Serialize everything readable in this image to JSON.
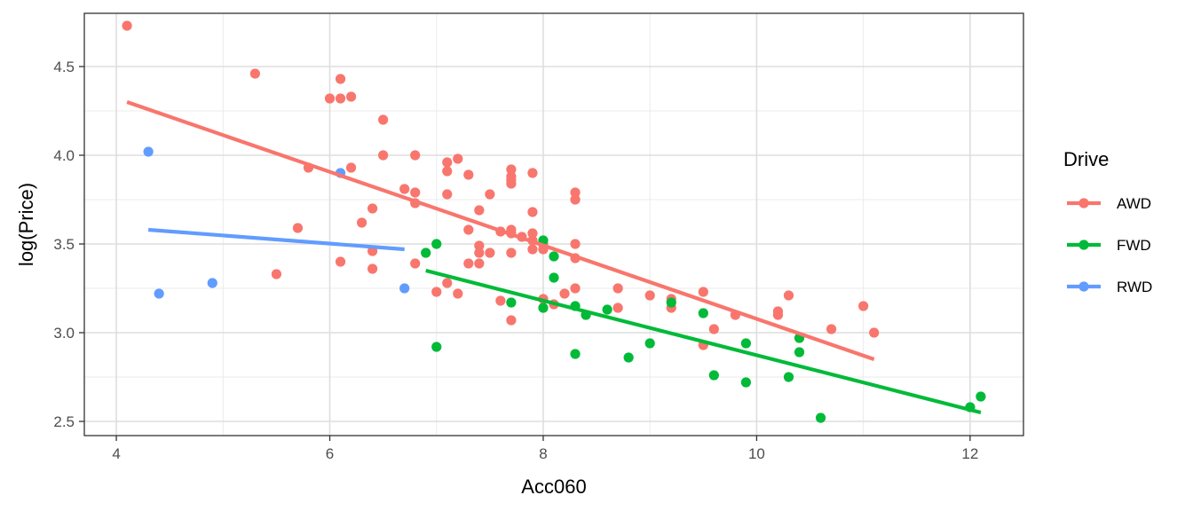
{
  "chart_data": {
    "type": "scatter",
    "xlabel": "Acc060",
    "ylabel": "log(Price)",
    "xlim": [
      3.7,
      12.5
    ],
    "ylim": [
      2.42,
      4.8
    ],
    "x_ticks": [
      4,
      6,
      8,
      10,
      12
    ],
    "y_ticks": [
      2.5,
      3.0,
      3.5,
      4.0,
      4.5
    ],
    "x_tick_labels": [
      "4",
      "6",
      "8",
      "10",
      "12"
    ],
    "y_tick_labels": [
      "2.5",
      "3.0",
      "3.5",
      "4.0",
      "4.5"
    ],
    "grid": true,
    "legend": {
      "title": "Drive",
      "position": "right"
    },
    "series": [
      {
        "name": "AWD",
        "color": "#F8766D",
        "points": [
          [
            4.1,
            4.73
          ],
          [
            5.3,
            4.46
          ],
          [
            5.5,
            3.33
          ],
          [
            5.7,
            3.59
          ],
          [
            5.8,
            3.93
          ],
          [
            6.0,
            4.32
          ],
          [
            6.1,
            4.43
          ],
          [
            6.1,
            4.32
          ],
          [
            6.2,
            4.33
          ],
          [
            6.2,
            3.93
          ],
          [
            6.1,
            3.4
          ],
          [
            6.3,
            3.62
          ],
          [
            6.4,
            3.7
          ],
          [
            6.4,
            3.46
          ],
          [
            6.4,
            3.36
          ],
          [
            6.5,
            4.2
          ],
          [
            6.5,
            4.0
          ],
          [
            6.7,
            3.81
          ],
          [
            6.8,
            4.0
          ],
          [
            6.8,
            3.79
          ],
          [
            6.8,
            3.73
          ],
          [
            6.8,
            3.39
          ],
          [
            7.0,
            3.23
          ],
          [
            7.1,
            3.96
          ],
          [
            7.1,
            3.91
          ],
          [
            7.1,
            3.78
          ],
          [
            7.1,
            3.28
          ],
          [
            7.2,
            3.98
          ],
          [
            7.2,
            3.22
          ],
          [
            7.3,
            3.89
          ],
          [
            7.3,
            3.58
          ],
          [
            7.3,
            3.39
          ],
          [
            7.4,
            3.69
          ],
          [
            7.4,
            3.49
          ],
          [
            7.4,
            3.45
          ],
          [
            7.4,
            3.39
          ],
          [
            7.5,
            3.78
          ],
          [
            7.5,
            3.45
          ],
          [
            7.6,
            3.57
          ],
          [
            7.6,
            3.18
          ],
          [
            7.7,
            3.92
          ],
          [
            7.7,
            3.88
          ],
          [
            7.7,
            3.86
          ],
          [
            7.7,
            3.84
          ],
          [
            7.7,
            3.58
          ],
          [
            7.7,
            3.56
          ],
          [
            7.7,
            3.45
          ],
          [
            7.7,
            3.07
          ],
          [
            7.8,
            3.54
          ],
          [
            7.9,
            3.9
          ],
          [
            7.9,
            3.68
          ],
          [
            7.9,
            3.56
          ],
          [
            7.9,
            3.52
          ],
          [
            7.9,
            3.47
          ],
          [
            8.0,
            3.5
          ],
          [
            8.0,
            3.47
          ],
          [
            8.0,
            3.19
          ],
          [
            8.1,
            3.16
          ],
          [
            8.2,
            3.22
          ],
          [
            8.3,
            3.79
          ],
          [
            8.3,
            3.75
          ],
          [
            8.3,
            3.5
          ],
          [
            8.3,
            3.42
          ],
          [
            8.3,
            3.25
          ],
          [
            8.7,
            3.25
          ],
          [
            8.7,
            3.14
          ],
          [
            9.0,
            3.21
          ],
          [
            9.2,
            3.19
          ],
          [
            9.2,
            3.14
          ],
          [
            9.5,
            3.23
          ],
          [
            9.5,
            2.93
          ],
          [
            9.6,
            3.02
          ],
          [
            9.8,
            3.1
          ],
          [
            10.2,
            3.12
          ],
          [
            10.2,
            3.1
          ],
          [
            10.3,
            3.21
          ],
          [
            10.7,
            3.02
          ],
          [
            11.0,
            3.15
          ],
          [
            11.1,
            3.0
          ]
        ],
        "fit": [
          [
            4.1,
            4.3
          ],
          [
            11.1,
            2.85
          ]
        ]
      },
      {
        "name": "FWD",
        "color": "#00BA38",
        "points": [
          [
            6.9,
            3.45
          ],
          [
            7.0,
            3.5
          ],
          [
            7.0,
            2.92
          ],
          [
            7.7,
            3.17
          ],
          [
            8.0,
            3.52
          ],
          [
            8.0,
            3.14
          ],
          [
            8.1,
            3.43
          ],
          [
            8.1,
            3.31
          ],
          [
            8.3,
            3.15
          ],
          [
            8.3,
            2.88
          ],
          [
            8.4,
            3.1
          ],
          [
            8.6,
            3.13
          ],
          [
            8.8,
            2.86
          ],
          [
            9.0,
            2.94
          ],
          [
            9.2,
            3.17
          ],
          [
            9.5,
            3.11
          ],
          [
            9.6,
            2.76
          ],
          [
            9.9,
            2.94
          ],
          [
            9.9,
            2.72
          ],
          [
            10.3,
            2.75
          ],
          [
            10.4,
            2.97
          ],
          [
            10.4,
            2.89
          ],
          [
            10.6,
            2.52
          ],
          [
            12.0,
            2.58
          ],
          [
            12.1,
            2.64
          ]
        ],
        "fit": [
          [
            6.9,
            3.35
          ],
          [
            12.1,
            2.55
          ]
        ]
      },
      {
        "name": "RWD",
        "color": "#619CFF",
        "points": [
          [
            4.3,
            4.02
          ],
          [
            4.4,
            3.22
          ],
          [
            4.9,
            3.28
          ],
          [
            6.1,
            3.9
          ],
          [
            6.7,
            3.25
          ]
        ],
        "fit": [
          [
            4.3,
            3.58
          ],
          [
            6.7,
            3.47
          ]
        ]
      }
    ]
  }
}
